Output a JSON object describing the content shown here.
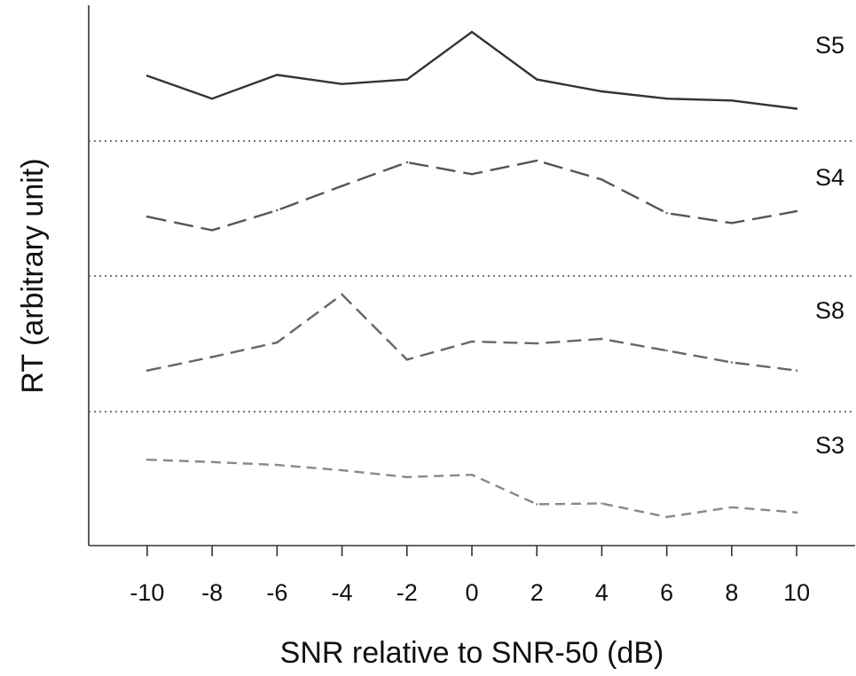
{
  "chart_data": {
    "type": "line",
    "title": "",
    "xlabel": "SNR relative to SNR-50 (dB)",
    "ylabel": "RT (arbitrary unit)",
    "x": [
      -10,
      -8,
      -6,
      -4,
      -2,
      0,
      2,
      4,
      6,
      8,
      10
    ],
    "x_tick_labels": [
      "-10",
      "-8",
      "-6",
      "-4",
      "-2",
      "0",
      "2",
      "4",
      "6",
      "8",
      "10"
    ],
    "xlim": [
      -11.8,
      11.8
    ],
    "y_units": "arbitrary, panel-normalized 0-1",
    "grid": false,
    "legend": "none",
    "panel_separator": "dotted",
    "series": [
      {
        "name": "S5",
        "dash": "solid",
        "color": "#333333",
        "values": [
          0.52,
          0.27,
          0.53,
          0.43,
          0.48,
          1.0,
          0.48,
          0.35,
          0.27,
          0.25,
          0.16
        ]
      },
      {
        "name": "S4",
        "dash": "long",
        "color": "#555555",
        "values": [
          0.38,
          0.23,
          0.45,
          0.72,
          0.98,
          0.85,
          1.0,
          0.79,
          0.42,
          0.31,
          0.44
        ]
      },
      {
        "name": "S8",
        "dash": "medium",
        "color": "#666666",
        "values": [
          0.16,
          0.31,
          0.47,
          1.0,
          0.28,
          0.48,
          0.46,
          0.51,
          0.38,
          0.25,
          0.16
        ]
      },
      {
        "name": "S3",
        "dash": "short",
        "color": "#888888",
        "values": [
          0.68,
          0.65,
          0.61,
          0.54,
          0.45,
          0.48,
          0.09,
          0.1,
          -0.08,
          0.05,
          -0.02
        ]
      }
    ]
  }
}
